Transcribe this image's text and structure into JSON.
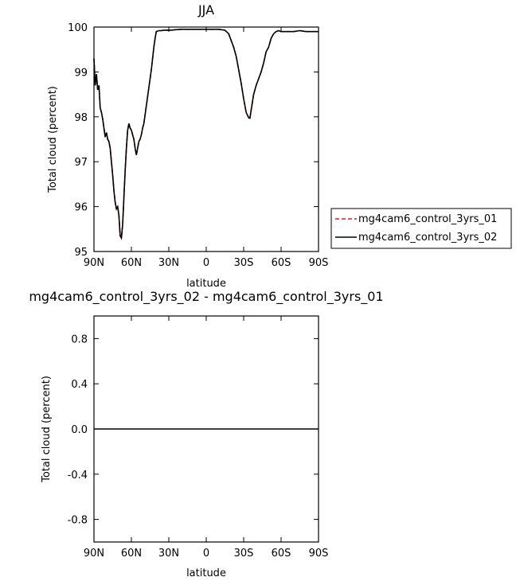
{
  "chart_data": [
    {
      "type": "line",
      "title": "JJA",
      "xlabel": "latitude",
      "ylabel": "Total cloud (percent)",
      "xlim": [
        90,
        -90
      ],
      "ylim": [
        95,
        100
      ],
      "x_ticks": [
        90,
        60,
        30,
        0,
        -30,
        -60,
        -90
      ],
      "x_tick_labels": [
        "90N",
        "60N",
        "30N",
        "0",
        "30S",
        "60S",
        "90S"
      ],
      "y_ticks": [
        95,
        96,
        97,
        98,
        99,
        100
      ],
      "y_tick_labels": [
        "95",
        "96",
        "97",
        "98",
        "99",
        "100"
      ],
      "grid": false,
      "legend_placement": "right",
      "x": [
        90,
        89,
        88,
        87,
        86,
        85,
        84,
        83,
        82,
        81,
        80,
        79,
        78,
        77,
        76,
        75,
        74,
        73,
        72,
        71,
        70,
        69,
        68,
        67,
        66,
        65,
        64,
        63,
        62,
        61,
        60,
        59,
        58,
        57,
        56,
        55,
        54,
        53,
        52,
        51,
        50,
        49,
        48,
        47,
        46,
        45,
        44,
        43,
        42,
        41,
        40,
        38,
        36,
        34,
        32,
        30,
        28,
        25,
        20,
        15,
        10,
        5,
        0,
        -5,
        -10,
        -15,
        -18,
        -20,
        -22,
        -24,
        -26,
        -28,
        -30,
        -32,
        -34,
        -35,
        -36,
        -38,
        -40,
        -42,
        -44,
        -46,
        -48,
        -50,
        -52,
        -54,
        -56,
        -58,
        -60,
        -65,
        -70,
        -75,
        -80,
        -85,
        -90
      ],
      "series": [
        {
          "name": "mg4cam6_control_3yrs_01",
          "color": "#e41a1c",
          "dash": "dashed",
          "values": [
            99.3,
            98.7,
            98.95,
            98.6,
            98.7,
            98.2,
            98.1,
            97.95,
            97.75,
            97.55,
            97.65,
            97.5,
            97.45,
            97.3,
            97.0,
            96.7,
            96.35,
            96.1,
            95.95,
            96.0,
            95.8,
            95.35,
            95.3,
            95.6,
            96.2,
            96.8,
            97.3,
            97.7,
            97.85,
            97.75,
            97.7,
            97.6,
            97.5,
            97.3,
            97.15,
            97.3,
            97.45,
            97.5,
            97.6,
            97.75,
            97.85,
            98.05,
            98.25,
            98.45,
            98.65,
            98.85,
            99.05,
            99.3,
            99.55,
            99.75,
            99.9,
            99.92,
            99.92,
            99.93,
            99.93,
            99.93,
            99.93,
            99.94,
            99.95,
            99.95,
            99.95,
            99.95,
            99.95,
            99.95,
            99.95,
            99.93,
            99.85,
            99.7,
            99.55,
            99.35,
            99.05,
            98.75,
            98.4,
            98.1,
            97.98,
            97.97,
            98.15,
            98.5,
            98.7,
            98.85,
            99.0,
            99.2,
            99.45,
            99.55,
            99.75,
            99.85,
            99.9,
            99.92,
            99.9,
            99.9,
            99.9,
            99.92,
            99.9,
            99.9,
            99.9
          ]
        },
        {
          "name": "mg4cam6_control_3yrs_02",
          "color": "#000000",
          "dash": "solid",
          "values": [
            99.3,
            98.7,
            98.95,
            98.6,
            98.7,
            98.2,
            98.1,
            97.95,
            97.75,
            97.55,
            97.65,
            97.5,
            97.45,
            97.3,
            97.0,
            96.7,
            96.35,
            96.1,
            95.95,
            96.0,
            95.8,
            95.35,
            95.3,
            95.6,
            96.2,
            96.8,
            97.3,
            97.7,
            97.85,
            97.75,
            97.7,
            97.6,
            97.5,
            97.3,
            97.15,
            97.3,
            97.45,
            97.5,
            97.6,
            97.75,
            97.85,
            98.05,
            98.25,
            98.45,
            98.65,
            98.85,
            99.05,
            99.3,
            99.55,
            99.75,
            99.9,
            99.92,
            99.92,
            99.93,
            99.93,
            99.93,
            99.93,
            99.94,
            99.95,
            99.95,
            99.95,
            99.95,
            99.95,
            99.95,
            99.95,
            99.93,
            99.85,
            99.7,
            99.55,
            99.35,
            99.05,
            98.75,
            98.4,
            98.1,
            97.98,
            97.97,
            98.15,
            98.5,
            98.7,
            98.85,
            99.0,
            99.2,
            99.45,
            99.55,
            99.75,
            99.85,
            99.9,
            99.92,
            99.9,
            99.9,
            99.9,
            99.92,
            99.9,
            99.9,
            99.9
          ]
        }
      ]
    },
    {
      "type": "line",
      "title": "mg4cam6_control_3yrs_02 - mg4cam6_control_3yrs_01",
      "xlabel": "latitude",
      "ylabel": "Total cloud (percent)",
      "xlim": [
        90,
        -90
      ],
      "ylim": [
        -1,
        1
      ],
      "x_ticks": [
        90,
        60,
        30,
        0,
        -30,
        -60,
        -90
      ],
      "x_tick_labels": [
        "90N",
        "60N",
        "30N",
        "0",
        "30S",
        "60S",
        "90S"
      ],
      "y_ticks": [
        -0.8,
        -0.4,
        0.0,
        0.4,
        0.8
      ],
      "y_tick_labels": [
        "-0.8",
        "-0.4",
        "0.0",
        "0.4",
        "0.8"
      ],
      "grid": false,
      "x": [
        90,
        -90
      ],
      "series": [
        {
          "color": "#000000",
          "dash": "solid",
          "values": [
            0.0,
            0.0
          ]
        }
      ]
    }
  ]
}
